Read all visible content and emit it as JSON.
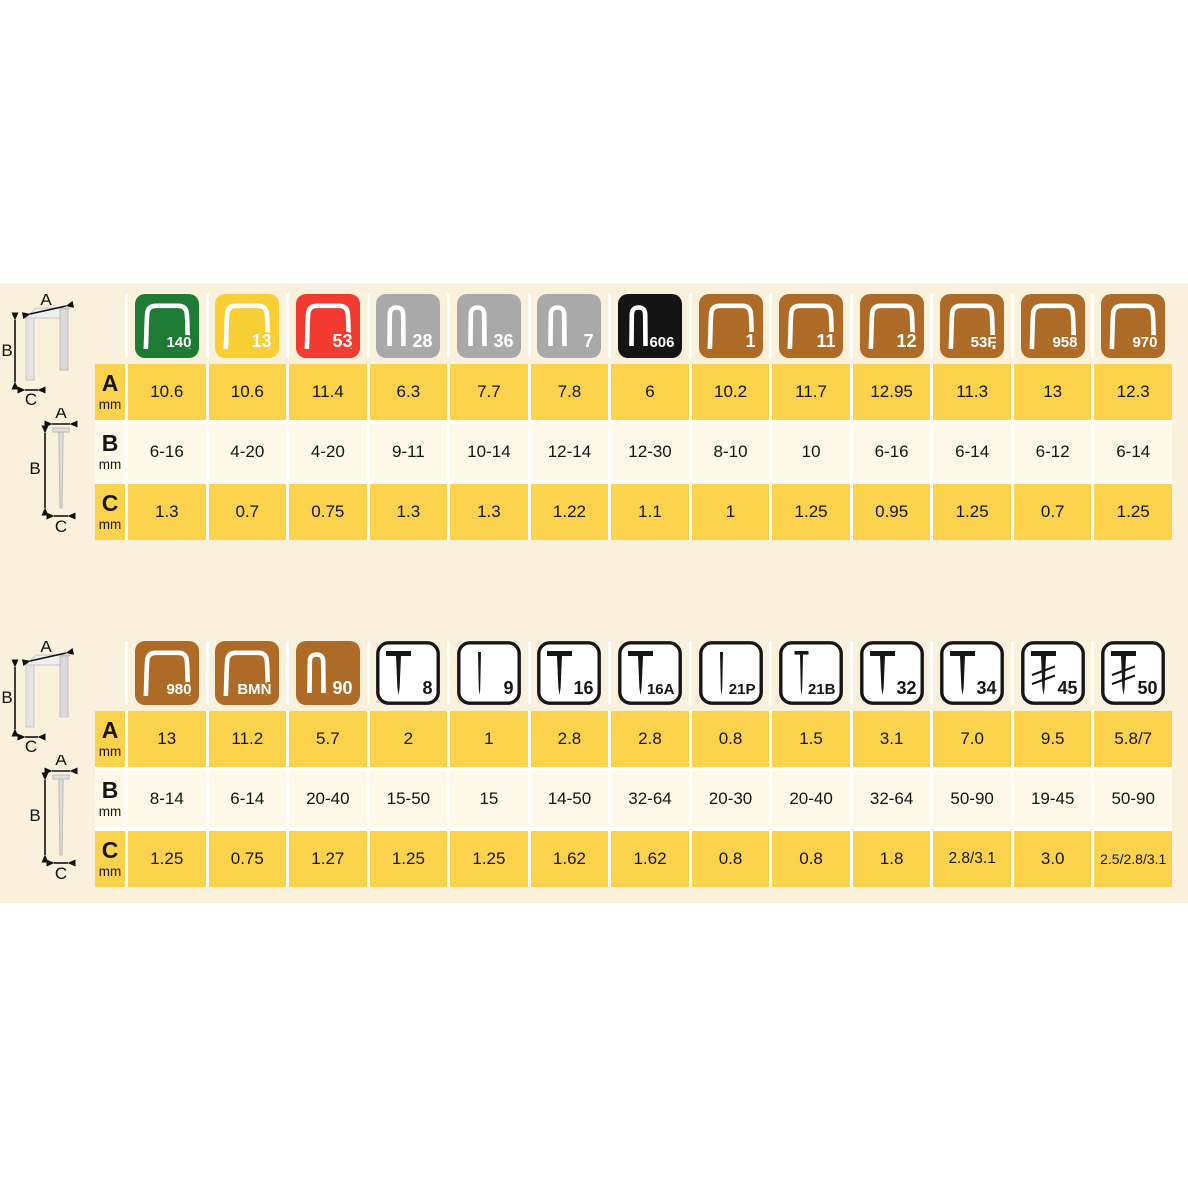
{
  "colors": {
    "band_background": "#faf1dc",
    "row_yellow": "#fbd24b",
    "row_cream": "#fdf8e7",
    "icon_green": "#1e7b34",
    "icon_yellow": "#f8ce35",
    "icon_red": "#f13b31",
    "icon_gray": "#a9a9a9",
    "icon_black": "#141414",
    "icon_brown": "#ad6b27",
    "icon_white": "#ffffff",
    "icon_outline": "#161616",
    "text": "#161616"
  },
  "diagrams": {
    "width_label": "A",
    "length_label": "B",
    "wire_label": "C"
  },
  "chart_data": [
    {
      "type": "table",
      "name": "staples",
      "row_headers": [
        {
          "letter": "A",
          "unit": "mm"
        },
        {
          "letter": "B",
          "unit": "mm"
        },
        {
          "letter": "C",
          "unit": "mm"
        }
      ],
      "columns": [
        {
          "label": "140",
          "icon": "wide-staple",
          "color": "icon_green"
        },
        {
          "label": "13",
          "icon": "wide-staple",
          "color": "icon_yellow"
        },
        {
          "label": "53",
          "icon": "wide-staple",
          "color": "icon_red"
        },
        {
          "label": "28",
          "icon": "narrow-staple",
          "color": "icon_gray"
        },
        {
          "label": "36",
          "icon": "narrow-staple",
          "color": "icon_gray"
        },
        {
          "label": "7",
          "icon": "narrow-staple",
          "color": "icon_gray"
        },
        {
          "label": "606",
          "icon": "narrow-staple",
          "color": "icon_black"
        },
        {
          "label": "1",
          "icon": "wide-staple",
          "color": "icon_brown"
        },
        {
          "label": "11",
          "icon": "wide-staple",
          "color": "icon_brown"
        },
        {
          "label": "12",
          "icon": "wide-staple",
          "color": "icon_brown"
        },
        {
          "label": "53F",
          "icon": "wide-staple",
          "color": "icon_brown"
        },
        {
          "label": "958",
          "icon": "wide-staple",
          "color": "icon_brown"
        },
        {
          "label": "970",
          "icon": "wide-staple",
          "color": "icon_brown"
        }
      ],
      "rows": {
        "A": [
          "10.6",
          "10.6",
          "11.4",
          "6.3",
          "7.7",
          "7.8",
          "6",
          "10.2",
          "11.7",
          "12.95",
          "11.3",
          "13",
          "12.3"
        ],
        "B": [
          "6-16",
          "4-20",
          "4-20",
          "9-11",
          "10-14",
          "12-14",
          "12-30",
          "8-10",
          "10",
          "6-16",
          "6-14",
          "6-12",
          "6-14"
        ],
        "C": [
          "1.3",
          "0.7",
          "0.75",
          "1.3",
          "1.3",
          "1.22",
          "1.1",
          "1",
          "1.25",
          "0.95",
          "1.25",
          "0.7",
          "1.25"
        ]
      }
    },
    {
      "type": "table",
      "name": "nails_and_brads",
      "row_headers": [
        {
          "letter": "A",
          "unit": "mm"
        },
        {
          "letter": "B",
          "unit": "mm"
        },
        {
          "letter": "C",
          "unit": "mm"
        }
      ],
      "columns": [
        {
          "label": "980",
          "icon": "wide-staple",
          "color": "icon_brown"
        },
        {
          "label": "BMN",
          "icon": "wide-staple",
          "color": "icon_brown"
        },
        {
          "label": "90",
          "icon": "narrow-staple",
          "color": "icon_brown"
        },
        {
          "label": "8",
          "icon": "brad-nail",
          "color": "icon_white"
        },
        {
          "label": "9",
          "icon": "pin",
          "color": "icon_white"
        },
        {
          "label": "16",
          "icon": "brad-nail",
          "color": "icon_white"
        },
        {
          "label": "16A",
          "icon": "brad-nail",
          "color": "icon_white"
        },
        {
          "label": "21P",
          "icon": "pin",
          "color": "icon_white"
        },
        {
          "label": "21B",
          "icon": "headed-pin",
          "color": "icon_white"
        },
        {
          "label": "32",
          "icon": "brad-nail",
          "color": "icon_white"
        },
        {
          "label": "34",
          "icon": "brad-nail",
          "color": "icon_white"
        },
        {
          "label": "45",
          "icon": "threaded-nail",
          "color": "icon_white"
        },
        {
          "label": "50",
          "icon": "threaded-nail",
          "color": "icon_white"
        }
      ],
      "rows": {
        "A": [
          "13",
          "11.2",
          "5.7",
          "2",
          "1",
          "2.8",
          "2.8",
          "0.8",
          "1.5",
          "3.1",
          "7.0",
          "9.5",
          "5.8/7"
        ],
        "B": [
          "8-14",
          "6-14",
          "20-40",
          "15-50",
          "15",
          "14-50",
          "32-64",
          "20-30",
          "20-40",
          "32-64",
          "50-90",
          "19-45",
          "50-90"
        ],
        "C": [
          "1.25",
          "0.75",
          "1.27",
          "1.25",
          "1.25",
          "1.62",
          "1.62",
          "0.8",
          "0.8",
          "1.8",
          "2.8/3.1",
          "3.0",
          "2.5/2.8/3.1"
        ]
      }
    }
  ]
}
